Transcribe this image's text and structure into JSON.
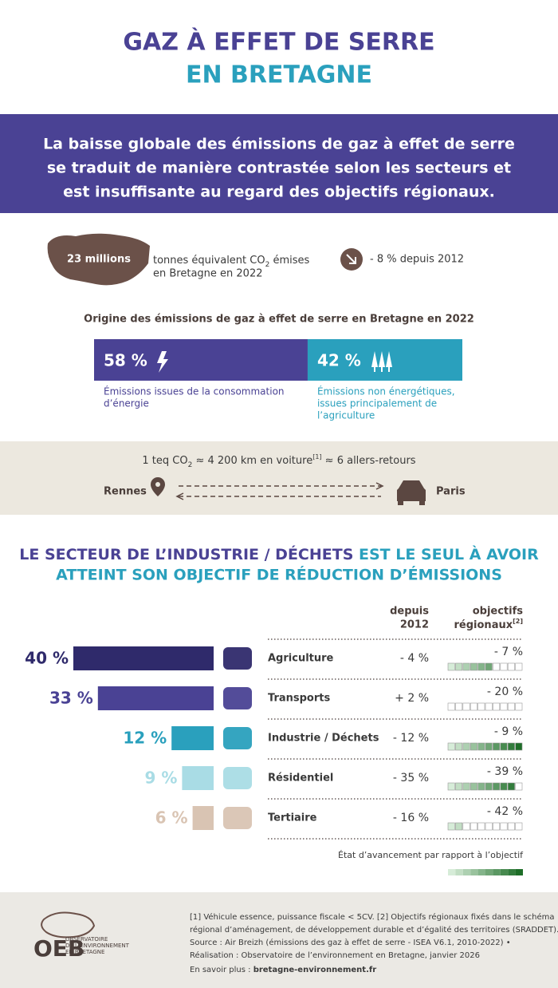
{
  "header": {
    "title_line1": "GAZ À EFFET DE SERRE",
    "title_line2": "EN BRETAGNE"
  },
  "banner": {
    "lines": [
      "La baisse globale des émissions de gaz à effet de serre",
      "se traduit de manière contrastée selon les secteurs et",
      "est insuffisante au regard des objectifs régionaux."
    ]
  },
  "key_figure": {
    "amount": "23 millions",
    "unit_before_sub": "tonnes équivalent CO",
    "unit_sub": "2",
    "unit_after_sub": " émises",
    "unit_line2": "en Bretagne en 2022",
    "trend": "- 8 % depuis 2012"
  },
  "origin": {
    "title": "Origine des émissions de gaz à effet de serre en Bretagne en 2022",
    "parts": [
      {
        "share": 58,
        "label": "58 %",
        "caption_lines": [
          "Émissions issues de la consommation",
          "d’énergie"
        ]
      },
      {
        "share": 42,
        "label": "42 %",
        "caption_lines": [
          "Émissions non énergétiques,",
          "issues principalement de",
          "l’agriculture"
        ]
      }
    ]
  },
  "equivalence": {
    "text_before_sub": "1 teq CO",
    "sub": "2",
    "text_mid": " ≈ 4 200 km en voiture",
    "note": "[1]",
    "text_after": " ≈ 6 allers-retours",
    "origin_city": "Rennes",
    "destination_city": "Paris"
  },
  "sectors": {
    "heading_part1": "LE SECTEUR DE L’INDUSTRIE / DÉCHETS",
    "heading_part2": " EST LE SEUL À AVOIR",
    "heading_line2": "ATTEINT SON OBJECTIF DE RÉDUCTION D’ÉMISSIONS",
    "column_since": [
      "depuis",
      "2012"
    ],
    "column_objective": [
      "objectifs",
      "régionaux"
    ],
    "objective_note": "[2]",
    "progress_total_cells": 10,
    "rows": [
      {
        "name": "Agriculture",
        "share": 40,
        "share_label": "40 %",
        "color": "#2f2a6b",
        "since_2012": "- 4 %",
        "objective": "- 7 %",
        "progress_cells": 6
      },
      {
        "name": "Transports",
        "share": 33,
        "share_label": "33 %",
        "color": "#4a4294",
        "since_2012": "+ 2 %",
        "objective": "- 20 %",
        "progress_cells": 0
      },
      {
        "name": "Industrie / Déchets",
        "share": 12,
        "share_label": "12 %",
        "color": "#2aa0bd",
        "since_2012": "- 12 %",
        "objective": "- 9 %",
        "progress_cells": 10
      },
      {
        "name": "Résidentiel",
        "share": 9,
        "share_label": "9 %",
        "color": "#a9dce5",
        "since_2012": "- 35 %",
        "objective": "- 39 %",
        "progress_cells": 9
      },
      {
        "name": "Tertiaire",
        "share": 6,
        "share_label": "6 %",
        "color": "#d9c4b3",
        "since_2012": "- 16 %",
        "objective": "- 42 %",
        "progress_cells": 2
      }
    ],
    "legend": "État d’avancement par rapport à l’objectif"
  },
  "footer": {
    "logo": "OEB",
    "org_lines": [
      "OBSERVATOIRE",
      "DE L’ENVIRONNEMENT",
      "EN BRETAGNE"
    ],
    "notes": [
      "[1] Véhicule essence, puissance fiscale < 5CV. [2] Objectifs régionaux fixés dans le schéma",
      "régional d’aménagement, de développement durable et d’égalité des territoires (SRADDET).",
      "Source : Air Breizh (émissions des gaz à effet de serre - ISEA V6.1, 2010-2022) •",
      "Réalisation : Observatoire de l’environnement en Bretagne, janvier 2026"
    ],
    "more_label": "En savoir plus : ",
    "more_link": "bretagne-environnement.fr"
  }
}
